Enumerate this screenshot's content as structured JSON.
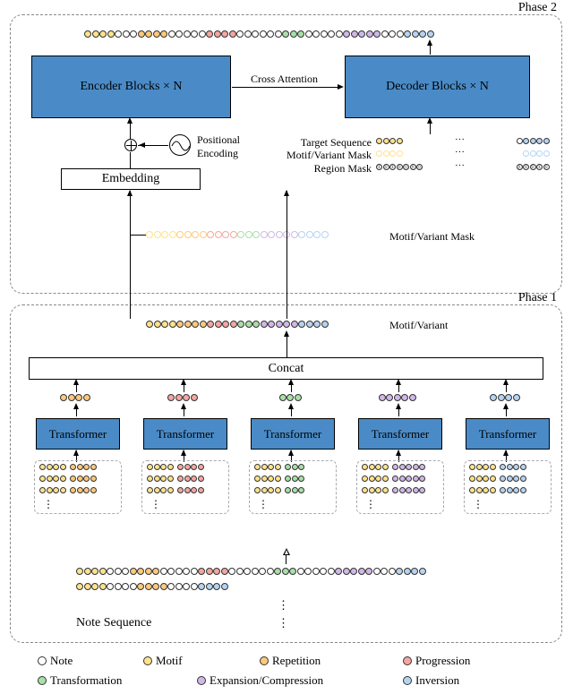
{
  "colors": {
    "note": "#ffffff",
    "motif": "#ffe38a",
    "repetition": "#ffc97a",
    "progression": "#f5a6a0",
    "transformation": "#a8e0a8",
    "expansion": "#d1b8e8",
    "inversion": "#b6d4f2",
    "block_blue": "#4a8bc7",
    "border": "#888888"
  },
  "phase2": {
    "label": "Phase 2",
    "encoder": "Encoder Blocks × N",
    "decoder": "Decoder Blocks × N",
    "cross_attention": "Cross Attention",
    "embedding": "Embedding",
    "positional": "Positional\nEncoding",
    "target_seq": "Target Sequence",
    "motif_mask": "Motif/Variant Mask",
    "region_mask": "Region Mask",
    "motif_mask_right": "Motif/Variant Mask"
  },
  "phase1": {
    "label": "Phase 1",
    "concat": "Concat",
    "transformer": "Transformer",
    "motif_variant": "Motif/Variant",
    "note_sequence": "Note Sequence"
  },
  "legend": {
    "note": "Note",
    "motif": "Motif",
    "repetition": "Repetition",
    "progression": "Progression",
    "transformation": "Transformation",
    "expansion": "Expansion/Compression",
    "inversion": "Inversion"
  },
  "output_sequence_pattern": [
    "motif",
    "motif",
    "motif",
    "motif",
    "note",
    "note",
    "note",
    "repetition",
    "repetition",
    "repetition",
    "repetition",
    "note",
    "note",
    "note",
    "note",
    "note",
    "progression",
    "progression",
    "progression",
    "progression",
    "note",
    "note",
    "note",
    "note",
    "note",
    "note",
    "transformation",
    "transformation",
    "transformation",
    "note",
    "note",
    "note",
    "note",
    "note",
    "expansion",
    "expansion",
    "expansion",
    "expansion",
    "expansion",
    "note",
    "note",
    "note",
    "inversion",
    "inversion",
    "inversion",
    "inversion"
  ],
  "mask_pattern": [
    "motif",
    "motif",
    "motif",
    "motif",
    "repetition",
    "repetition",
    "repetition",
    "repetition",
    "progression",
    "progression",
    "progression",
    "progression",
    "transformation",
    "transformation",
    "transformation",
    "expansion",
    "expansion",
    "expansion",
    "expansion",
    "expansion",
    "inversion",
    "inversion",
    "inversion",
    "inversion"
  ],
  "target_seq_circles": {
    "left": [
      "motif",
      "motif",
      "motif",
      "motif"
    ],
    "right": [
      "note",
      "inversion",
      "inversion",
      "inversion",
      "inversion"
    ]
  },
  "motif_mask_circles": {
    "left": [
      "motif",
      "motif",
      "motif",
      "motif"
    ],
    "right": [
      "inversion",
      "inversion",
      "inversion",
      "inversion"
    ]
  },
  "region_values": {
    "left": [
      "①",
      "①",
      "①",
      "①",
      "⓪",
      "⓪",
      "⓪"
    ],
    "right": [
      "⓪",
      "①",
      "①",
      "①",
      "①"
    ]
  },
  "bottom_seq1": [
    "motif",
    "motif",
    "motif",
    "motif",
    "note",
    "note",
    "note",
    "repetition",
    "repetition",
    "repetition",
    "repetition",
    "note",
    "note",
    "note",
    "note",
    "note",
    "progression",
    "progression",
    "progression",
    "progression",
    "note",
    "note",
    "note",
    "note",
    "note",
    "note",
    "transformation",
    "transformation",
    "transformation",
    "note",
    "note",
    "note",
    "note",
    "note",
    "expansion",
    "expansion",
    "expansion",
    "expansion",
    "expansion",
    "note",
    "note",
    "note",
    "inversion",
    "inversion",
    "inversion",
    "inversion"
  ],
  "bottom_seq2": [
    "motif",
    "motif",
    "motif",
    "motif",
    "note",
    "note",
    "note",
    "note",
    "repetition",
    "repetition",
    "repetition",
    "repetition",
    "note",
    "note",
    "note",
    "note",
    "inversion",
    "inversion",
    "inversion",
    "inversion"
  ],
  "small_groups": [
    [
      "repetition",
      "repetition",
      "repetition",
      "repetition"
    ],
    [
      "progression",
      "progression",
      "progression",
      "progression"
    ],
    [
      "transformation",
      "transformation",
      "transformation"
    ],
    [
      "expansion",
      "expansion",
      "expansion",
      "expansion",
      "expansion"
    ],
    [
      "inversion",
      "inversion",
      "inversion",
      "inversion"
    ]
  ],
  "pair_groups": [
    {
      "left": [
        "motif",
        "motif",
        "motif",
        "motif"
      ],
      "right": [
        "repetition",
        "repetition",
        "repetition",
        "repetition"
      ]
    },
    {
      "left": [
        "motif",
        "motif",
        "motif",
        "motif"
      ],
      "right": [
        "progression",
        "progression",
        "progression",
        "progression"
      ]
    },
    {
      "left": [
        "motif",
        "motif",
        "motif",
        "motif"
      ],
      "right": [
        "transformation",
        "transformation",
        "transformation"
      ]
    },
    {
      "left": [
        "motif",
        "motif",
        "motif",
        "motif"
      ],
      "right": [
        "expansion",
        "expansion",
        "expansion",
        "expansion",
        "expansion"
      ]
    },
    {
      "left": [
        "motif",
        "motif",
        "motif",
        "motif"
      ],
      "right": [
        "inversion",
        "inversion",
        "inversion",
        "inversion"
      ]
    }
  ]
}
